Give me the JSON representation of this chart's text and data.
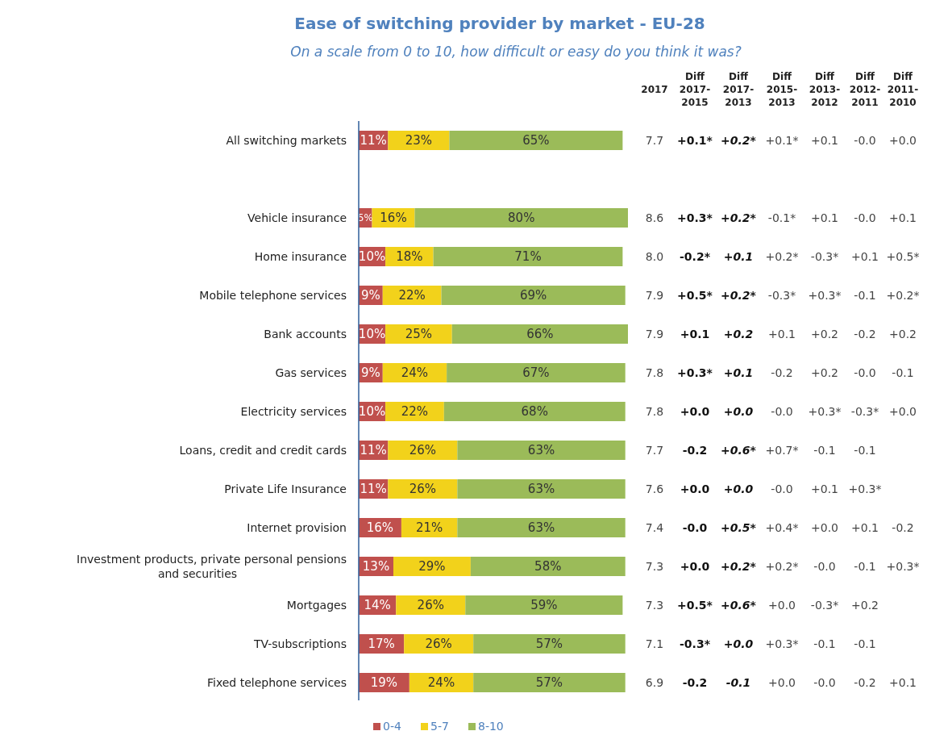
{
  "chart_data": {
    "type": "bar",
    "orientation": "horizontal",
    "stacked": true,
    "title": "Ease of switching provider by market - EU-28",
    "subtitle": "On a scale from 0 to 10, how difficult or easy do you think it was?",
    "categories": [
      "All switching markets",
      null,
      "Vehicle insurance",
      "Home insurance",
      "Mobile telephone services",
      "Bank accounts",
      "Gas services",
      "Electricity services",
      "Loans, credit and credit cards",
      "Private Life Insurance",
      "Internet provision",
      "Investment products, private personal pensions and securities",
      "Mortgages",
      "TV-subscriptions",
      "Fixed telephone services"
    ],
    "series": [
      {
        "name": "0-4",
        "color": "#c0504d",
        "values": [
          11,
          null,
          5,
          10,
          9,
          10,
          9,
          10,
          11,
          11,
          16,
          13,
          14,
          17,
          19
        ],
        "value_labels": [
          "11%",
          null,
          "5%",
          "10%",
          "9%",
          "10%",
          "9%",
          "10%",
          "11%",
          "11%",
          "16%",
          "13%",
          "14%",
          "17%",
          "19%"
        ]
      },
      {
        "name": "5-7",
        "color": "#f2d21b",
        "values": [
          23,
          null,
          16,
          18,
          22,
          25,
          24,
          22,
          26,
          26,
          21,
          29,
          26,
          26,
          24
        ],
        "value_labels": [
          "23%",
          null,
          "16%",
          "18%",
          "22%",
          "25%",
          "24%",
          "22%",
          "26%",
          "26%",
          "21%",
          "29%",
          "26%",
          "26%",
          "24%"
        ]
      },
      {
        "name": "8-10",
        "color": "#9bbb59",
        "values": [
          65,
          null,
          80,
          71,
          69,
          66,
          67,
          68,
          63,
          63,
          63,
          58,
          59,
          57,
          57
        ],
        "value_labels": [
          "65%",
          null,
          "80%",
          "71%",
          "69%",
          "66%",
          "67%",
          "68%",
          "63%",
          "63%",
          "63%",
          "58%",
          "59%",
          "57%",
          "57%"
        ]
      }
    ],
    "legend": "bottom",
    "annotations": [
      "2017",
      "Diff 2017-2015",
      "Diff 2017-2013",
      "Diff 2015-2013",
      "Diff 2013-2012",
      "Diff 2012-2011",
      "Diff 2011-2010",
      "7.7 +0.1* +0.2* +0.1* +0.1 -0.0 +0.0",
      "8.6 +0.3* +0.2* -0.1* +0.1 -0.0 +0.1",
      "8.0 -0.2* +0.1 +0.2* -0.3* +0.1 +0.5*",
      "7.9 +0.5* +0.2* -0.3* +0.3* -0.1 +0.2*",
      "7.9 +0.1 +0.2 +0.1 +0.2 -0.2 +0.2",
      "7.8 +0.3* +0.1 -0.2 +0.2 -0.0 -0.1",
      "7.8 +0.0 +0.0 -0.0 +0.3* -0.3* +0.0",
      "7.7 -0.2 +0.6* +0.7* -0.1 -0.1",
      "7.6 +0.0 +0.0 -0.0 +0.1 +0.3*",
      "7.4 -0.0 +0.5* +0.4* +0.0 +0.1 -0.2",
      "7.3 +0.0 +0.2* +0.2* -0.0 -0.1 +0.3*",
      "7.3 +0.5* +0.6* +0.0 -0.3* +0.2",
      "7.1 -0.3* +0.0 +0.3* -0.1 -0.1",
      "6.9 -0.2 -0.1 +0.0 -0.0 -0.2 +0.1"
    ]
  }
}
